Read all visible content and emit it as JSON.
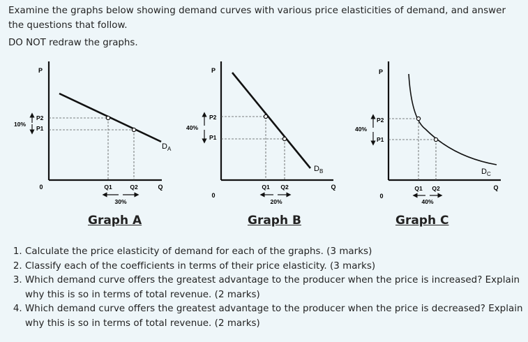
{
  "intro_text": "Examine the graphs below showing demand curves with various price elasticities of demand, and answer the questions that follow.",
  "note_text": "DO NOT redraw the graphs.",
  "graphs": [
    {
      "title": "Graph A",
      "axis_p": "P",
      "axis_q": "Q",
      "origin": "0",
      "p2": "P2",
      "p1": "P1",
      "price_change": "10%",
      "q1": "Q1",
      "q2": "Q2",
      "qty_change": "30%",
      "curve_label": "D",
      "curve_sub": "A"
    },
    {
      "title": "Graph B",
      "axis_p": "P",
      "axis_q": "Q",
      "origin": "0",
      "p2": "P2",
      "p1": "P1",
      "price_change": "40%",
      "q1": "Q1",
      "q2": "Q2",
      "qty_change": "20%",
      "curve_label": "D",
      "curve_sub": "B"
    },
    {
      "title": "Graph C",
      "axis_p": "P",
      "axis_q": "Q",
      "origin": "0",
      "p2": "P2",
      "p1": "P1",
      "price_change": "40%",
      "q1": "Q1",
      "q2": "Q2",
      "qty_change": "40%",
      "curve_label": "D",
      "curve_sub": "C"
    }
  ],
  "questions": [
    "Calculate the price elasticity of demand for each of the graphs. (3 marks)",
    "Classify each of the coefficients in terms of their price elasticity. (3 marks)",
    "Which demand curve offers the greatest advantage to the producer when the price is increased? Explain why this is so in terms of total revenue. (2 marks)",
    "Which demand curve offers the greatest advantage to the producer when the price is decreased? Explain why this is so in terms of total revenue. (2 marks)"
  ]
}
